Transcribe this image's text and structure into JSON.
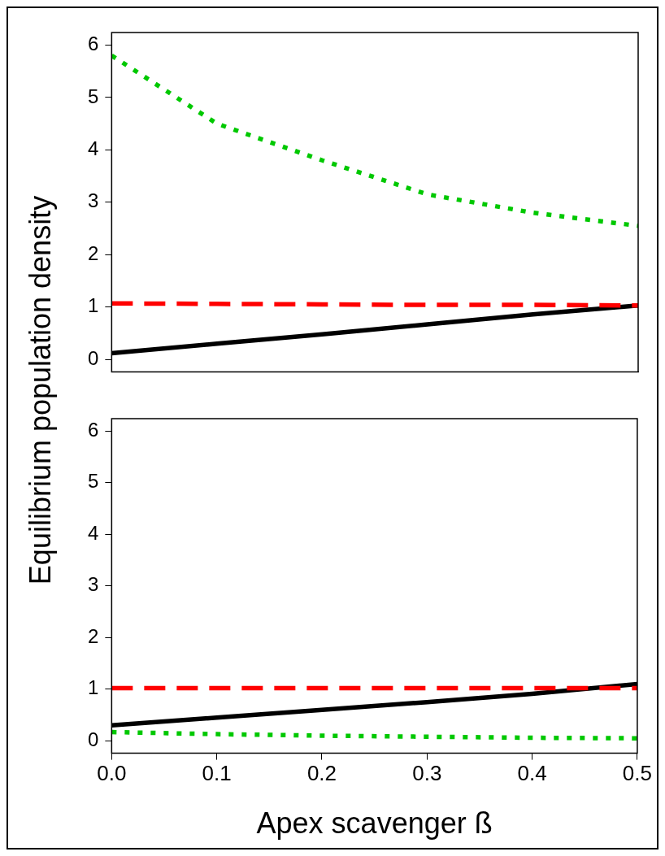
{
  "chart_data": [
    {
      "type": "line",
      "ylabel": "Equilibrium population density",
      "x": [
        0,
        0.1,
        0.2,
        0.3,
        0.4,
        0.5
      ],
      "xlim": [
        0,
        0.5
      ],
      "ylim": [
        -0.24,
        6.24
      ],
      "yticks": [
        0,
        1,
        2,
        3,
        4,
        5,
        6
      ],
      "tick_labels": "y",
      "grid": false,
      "legend": false,
      "marker": "none",
      "series": [
        {
          "color": "#00c800",
          "line_style": "dotted",
          "values": [
            5.8,
            4.5,
            3.8,
            3.15,
            2.8,
            2.55
          ]
        },
        {
          "color": "#ff0000",
          "line_style": "dashed",
          "values": [
            1.07,
            1.06,
            1.05,
            1.04,
            1.04,
            1.03
          ]
        },
        {
          "color": "#000000",
          "line_style": "solid",
          "values": [
            0.12,
            0.3,
            0.48,
            0.67,
            0.86,
            1.03
          ]
        }
      ]
    },
    {
      "type": "line",
      "xlabel": "Apex scavenger ß",
      "x": [
        0,
        0.1,
        0.2,
        0.3,
        0.4,
        0.5
      ],
      "xlim": [
        0,
        0.5
      ],
      "ylim": [
        -0.24,
        6.24
      ],
      "xticks": [
        {
          "value": 0,
          "label": "0.0"
        },
        0.1,
        0.2,
        0.3,
        0.4,
        {
          "value": 0.5,
          "label": "0.5"
        }
      ],
      "yticks": [
        0,
        1,
        2,
        3,
        4,
        5,
        6
      ],
      "grid": false,
      "legend": false,
      "marker": "none",
      "series": [
        {
          "color": "#00c800",
          "line_style": "dotted",
          "values": [
            0.17,
            0.13,
            0.1,
            0.08,
            0.06,
            0.05
          ]
        },
        {
          "color": "#ff0000",
          "line_style": "dashed",
          "values": [
            1.02,
            1.02,
            1.02,
            1.02,
            1.02,
            1.02
          ]
        },
        {
          "color": "#000000",
          "line_style": "solid",
          "values": [
            0.3,
            0.45,
            0.6,
            0.75,
            0.91,
            1.1
          ]
        }
      ]
    }
  ]
}
